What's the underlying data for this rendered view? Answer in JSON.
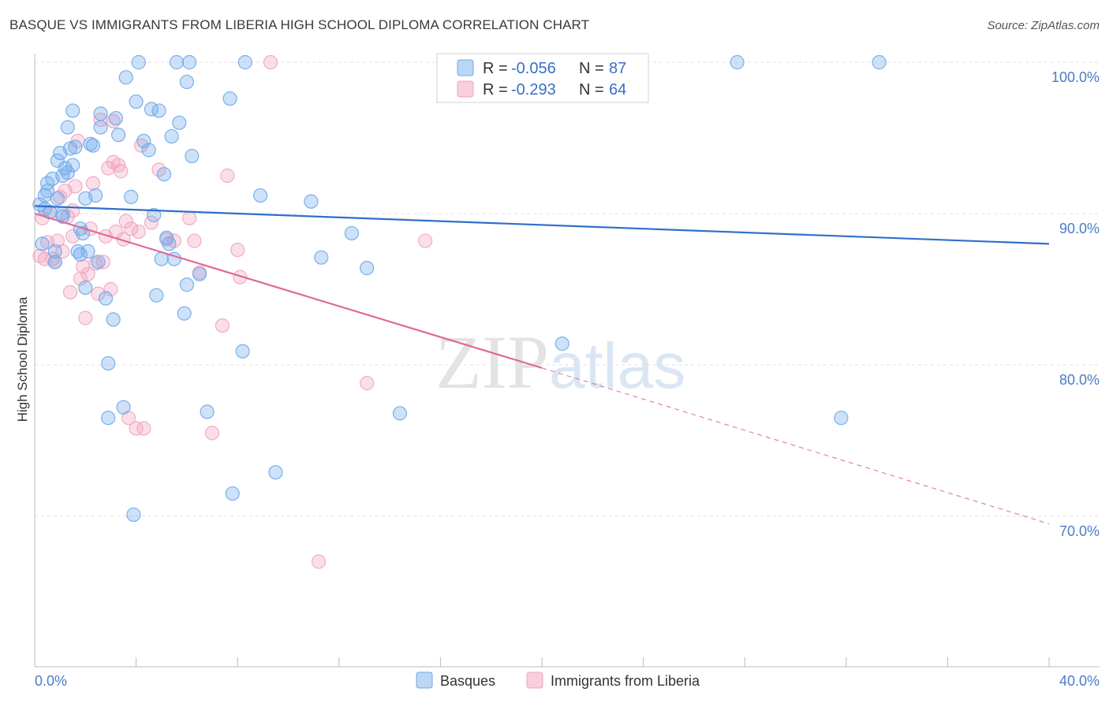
{
  "header": {
    "title": "BASQUE VS IMMIGRANTS FROM LIBERIA HIGH SCHOOL DIPLOMA CORRELATION CHART",
    "source": "Source: ZipAtlas.com"
  },
  "watermark": {
    "zip": "ZIP",
    "atlas": "atlas"
  },
  "stats_legend": [
    {
      "r_label": "R =",
      "r_value": "-0.056",
      "n_label": "N =",
      "n_value": "87"
    },
    {
      "r_label": "R =",
      "r_value": "-0.293",
      "n_label": "N =",
      "n_value": "64"
    }
  ],
  "chart_data": {
    "type": "scatter",
    "ylabel": "High School Diploma",
    "xlim": [
      0,
      40
    ],
    "ylim": [
      61,
      101
    ],
    "x_tick_labels": [
      "0.0%",
      "40.0%"
    ],
    "y_ticks": [
      {
        "value": 100,
        "label": "100.0%"
      },
      {
        "value": 90,
        "label": "90.0%"
      },
      {
        "value": 80,
        "label": "80.0%"
      },
      {
        "value": 70,
        "label": "70.0%"
      }
    ],
    "grid": "horizontal dashed",
    "legend_position": "bottom-center",
    "colors": {
      "basques": "#6fa8ea",
      "liberia": "#f2a3bf",
      "basques_line": "#2e6fcc",
      "liberia_line": "#e06b94"
    },
    "series": [
      {
        "name": "Basques",
        "trend": {
          "x0": 0,
          "y0": 90.5,
          "x1": 40,
          "y1": 88.0
        },
        "points": [
          [
            0.2,
            90.6
          ],
          [
            0.3,
            88.0
          ],
          [
            0.4,
            90.3
          ],
          [
            0.4,
            91.2
          ],
          [
            0.5,
            91.5
          ],
          [
            0.5,
            92.0
          ],
          [
            0.6,
            90.1
          ],
          [
            0.7,
            92.3
          ],
          [
            0.8,
            87.5
          ],
          [
            0.8,
            86.8
          ],
          [
            0.9,
            93.5
          ],
          [
            0.9,
            91.0
          ],
          [
            1.0,
            94.0
          ],
          [
            1.1,
            92.5
          ],
          [
            1.1,
            90.0
          ],
          [
            1.1,
            89.8
          ],
          [
            1.2,
            93.0
          ],
          [
            1.3,
            95.7
          ],
          [
            1.3,
            92.7
          ],
          [
            1.4,
            94.3
          ],
          [
            1.5,
            96.8
          ],
          [
            1.5,
            93.2
          ],
          [
            1.6,
            94.4
          ],
          [
            1.7,
            87.5
          ],
          [
            1.8,
            87.3
          ],
          [
            1.8,
            89.0
          ],
          [
            1.9,
            88.7
          ],
          [
            2.0,
            91.0
          ],
          [
            2.0,
            85.1
          ],
          [
            2.1,
            87.5
          ],
          [
            2.2,
            94.6
          ],
          [
            2.3,
            94.5
          ],
          [
            2.4,
            91.2
          ],
          [
            2.5,
            86.8
          ],
          [
            2.6,
            95.7
          ],
          [
            2.6,
            96.6
          ],
          [
            2.8,
            84.4
          ],
          [
            2.9,
            80.1
          ],
          [
            2.9,
            76.5
          ],
          [
            3.1,
            83.0
          ],
          [
            3.2,
            96.3
          ],
          [
            3.3,
            95.2
          ],
          [
            3.5,
            77.2
          ],
          [
            3.6,
            99.0
          ],
          [
            3.8,
            91.1
          ],
          [
            3.9,
            70.1
          ],
          [
            4.0,
            97.4
          ],
          [
            4.1,
            100.0
          ],
          [
            4.3,
            94.8
          ],
          [
            4.5,
            94.2
          ],
          [
            4.6,
            96.9
          ],
          [
            4.7,
            89.9
          ],
          [
            4.8,
            84.6
          ],
          [
            4.9,
            96.8
          ],
          [
            5.0,
            87.0
          ],
          [
            5.1,
            92.6
          ],
          [
            5.2,
            88.4
          ],
          [
            5.3,
            88.0
          ],
          [
            5.4,
            95.1
          ],
          [
            5.5,
            87.0
          ],
          [
            5.6,
            100.0
          ],
          [
            5.7,
            96.0
          ],
          [
            5.9,
            83.4
          ],
          [
            6.0,
            85.3
          ],
          [
            6.0,
            98.7
          ],
          [
            6.1,
            100.0
          ],
          [
            6.2,
            93.8
          ],
          [
            6.5,
            86.0
          ],
          [
            6.8,
            76.9
          ],
          [
            7.7,
            97.6
          ],
          [
            7.8,
            71.5
          ],
          [
            8.2,
            80.9
          ],
          [
            8.3,
            100.0
          ],
          [
            8.9,
            91.2
          ],
          [
            9.5,
            72.9
          ],
          [
            10.9,
            90.8
          ],
          [
            11.3,
            87.1
          ],
          [
            12.5,
            88.7
          ],
          [
            13.1,
            86.4
          ],
          [
            14.4,
            76.8
          ],
          [
            20.8,
            81.4
          ],
          [
            27.7,
            100.0
          ],
          [
            31.8,
            76.5
          ],
          [
            33.3,
            100.0
          ]
        ]
      },
      {
        "name": "Immigrants from Liberia",
        "trend": {
          "x0": 0,
          "y0": 90.0,
          "x1": 20,
          "y1": 79.8,
          "dash_x1": 40,
          "dash_y1": 69.5
        },
        "points": [
          [
            0.2,
            87.2
          ],
          [
            0.3,
            89.7
          ],
          [
            0.4,
            87.0
          ],
          [
            0.5,
            88.1
          ],
          [
            0.6,
            90.1
          ],
          [
            0.7,
            87.0
          ],
          [
            0.8,
            86.8
          ],
          [
            0.9,
            88.2
          ],
          [
            1.0,
            91.1
          ],
          [
            1.1,
            87.5
          ],
          [
            1.2,
            91.5
          ],
          [
            1.3,
            89.8
          ],
          [
            1.4,
            84.8
          ],
          [
            1.5,
            90.2
          ],
          [
            1.5,
            88.5
          ],
          [
            1.6,
            91.8
          ],
          [
            1.7,
            94.8
          ],
          [
            1.8,
            85.7
          ],
          [
            1.9,
            86.5
          ],
          [
            2.0,
            83.1
          ],
          [
            2.1,
            86.0
          ],
          [
            2.2,
            89.0
          ],
          [
            2.3,
            92.0
          ],
          [
            2.4,
            86.7
          ],
          [
            2.5,
            84.7
          ],
          [
            2.6,
            96.2
          ],
          [
            2.7,
            86.8
          ],
          [
            2.8,
            88.5
          ],
          [
            2.9,
            93.0
          ],
          [
            3.0,
            85.0
          ],
          [
            3.1,
            93.4
          ],
          [
            3.1,
            96.1
          ],
          [
            3.2,
            88.8
          ],
          [
            3.3,
            93.2
          ],
          [
            3.4,
            92.8
          ],
          [
            3.5,
            88.3
          ],
          [
            3.6,
            89.5
          ],
          [
            3.7,
            76.5
          ],
          [
            3.8,
            89.0
          ],
          [
            4.0,
            75.8
          ],
          [
            4.1,
            88.8
          ],
          [
            4.2,
            94.5
          ],
          [
            4.3,
            75.8
          ],
          [
            4.6,
            89.4
          ],
          [
            4.9,
            92.9
          ],
          [
            5.2,
            88.3
          ],
          [
            5.5,
            88.2
          ],
          [
            6.1,
            89.7
          ],
          [
            6.3,
            88.2
          ],
          [
            6.5,
            86.1
          ],
          [
            7.0,
            75.5
          ],
          [
            7.4,
            82.6
          ],
          [
            7.6,
            92.5
          ],
          [
            8.0,
            87.6
          ],
          [
            8.1,
            85.8
          ],
          [
            9.3,
            100.0
          ],
          [
            11.2,
            67.0
          ],
          [
            13.1,
            78.8
          ],
          [
            15.4,
            88.2
          ]
        ]
      }
    ]
  }
}
